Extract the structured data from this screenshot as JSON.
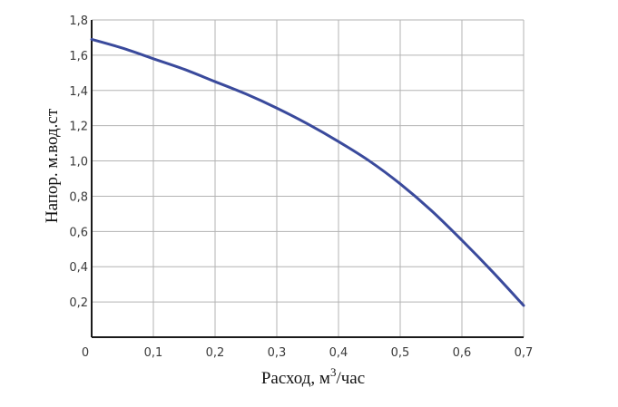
{
  "chart_data": {
    "type": "line",
    "title": "",
    "xlabel": "Расход, м",
    "xlabel_sup": "3",
    "xlabel_suffix": "/час",
    "ylabel": "Напор. м.вод.ст",
    "xlim": [
      0,
      0.7
    ],
    "ylim": [
      0,
      1.8
    ],
    "x_ticks": [
      {
        "value": 0,
        "label": "0"
      },
      {
        "value": 0.1,
        "label": "0,1"
      },
      {
        "value": 0.2,
        "label": "0,2"
      },
      {
        "value": 0.3,
        "label": "0,3"
      },
      {
        "value": 0.4,
        "label": "0,4"
      },
      {
        "value": 0.5,
        "label": "0,5"
      },
      {
        "value": 0.6,
        "label": "0,6"
      },
      {
        "value": 0.7,
        "label": "0,7"
      }
    ],
    "y_ticks": [
      {
        "value": 0.2,
        "label": "0,2"
      },
      {
        "value": 0.4,
        "label": "0,4"
      },
      {
        "value": 0.6,
        "label": "0,6"
      },
      {
        "value": 0.8,
        "label": "0,8"
      },
      {
        "value": 1.0,
        "label": "1,0"
      },
      {
        "value": 1.2,
        "label": "1,2"
      },
      {
        "value": 1.4,
        "label": "1,4"
      },
      {
        "value": 1.6,
        "label": "1,6"
      },
      {
        "value": 1.8,
        "label": "1,8"
      }
    ],
    "grid": true,
    "legend": "none",
    "series": [
      {
        "color": "#3a4a9c",
        "x": [
          0,
          0.05,
          0.1,
          0.15,
          0.2,
          0.25,
          0.3,
          0.35,
          0.4,
          0.45,
          0.5,
          0.55,
          0.6,
          0.65,
          0.7
        ],
        "y": [
          1.69,
          1.64,
          1.58,
          1.52,
          1.45,
          1.38,
          1.3,
          1.21,
          1.11,
          1.0,
          0.87,
          0.72,
          0.55,
          0.37,
          0.18
        ]
      }
    ]
  }
}
